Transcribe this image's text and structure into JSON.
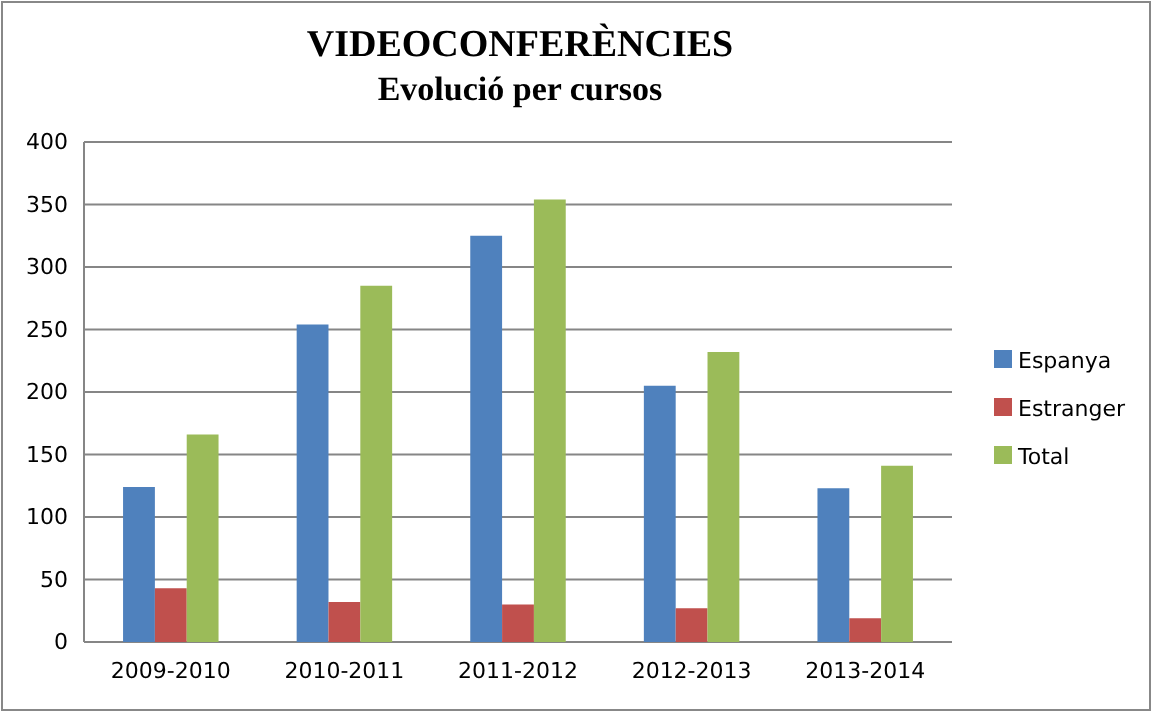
{
  "chart_data": {
    "type": "bar",
    "title": "VIDEOCONFERÈNCIES",
    "subtitle": "Evolució per cursos",
    "categories": [
      "2009-2010",
      "2010-2011",
      "2011-2012",
      "2012-2013",
      "2013-2014"
    ],
    "series": [
      {
        "name": "Espanya",
        "color": "#4f81bd",
        "values": [
          124,
          254,
          325,
          205,
          123
        ]
      },
      {
        "name": "Estranger",
        "color": "#c0504d",
        "values": [
          43,
          32,
          30,
          27,
          19
        ]
      },
      {
        "name": "Total",
        "color": "#9bbb59",
        "values": [
          166,
          285,
          354,
          232,
          141
        ]
      }
    ],
    "ylim": [
      0,
      400
    ],
    "yticks": [
      0,
      50,
      100,
      150,
      200,
      250,
      300,
      350,
      400
    ],
    "grid": "y",
    "legend": "right"
  }
}
